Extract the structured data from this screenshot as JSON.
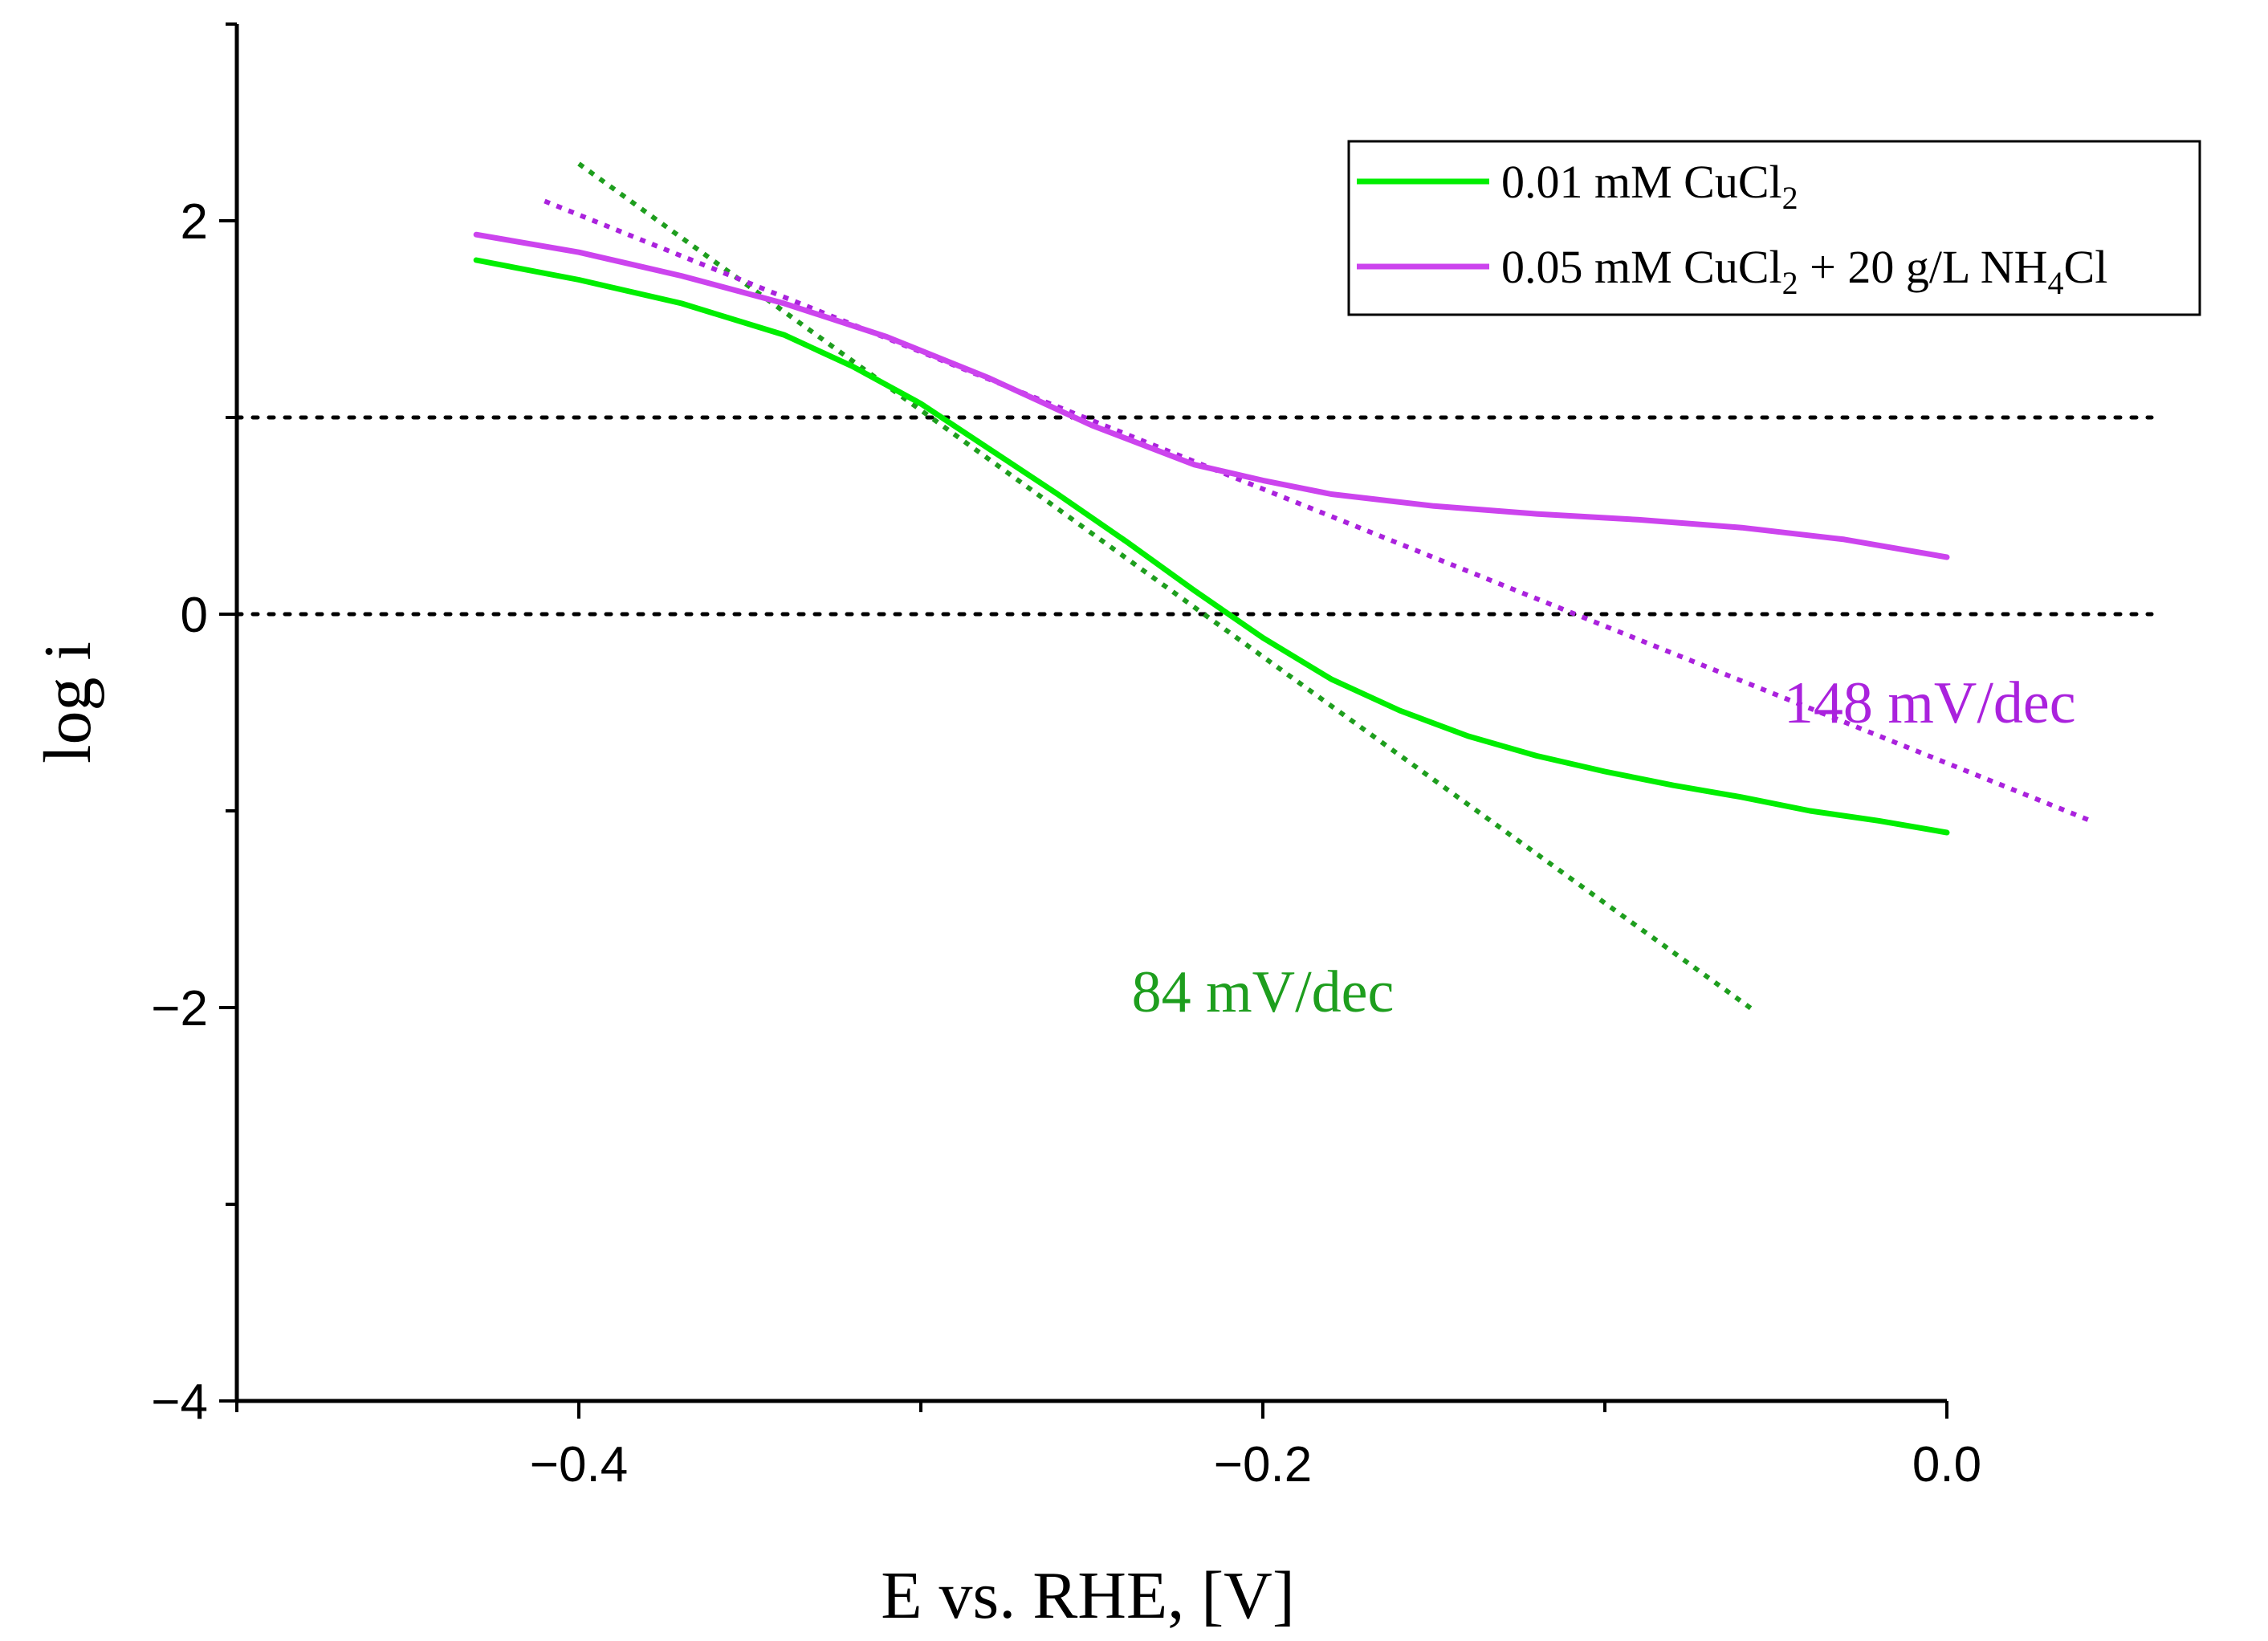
{
  "chart_data": {
    "type": "line",
    "title": "",
    "xlabel": "E vs. RHE, [V]",
    "ylabel": "log i",
    "xlim": [
      -0.5,
      0.0
    ],
    "ylim": [
      -4,
      3
    ],
    "xticks": [
      -0.4,
      -0.2,
      0.0
    ],
    "xtick_labels": [
      "−0.4",
      "−0.2",
      "0.0"
    ],
    "yticks": [
      -4,
      -2,
      0,
      2
    ],
    "ytick_labels": [
      "−4",
      "−2",
      "0",
      "2"
    ],
    "legend_position": "top-right",
    "series": [
      {
        "name": "0.01 mM CuCl2",
        "legend_main": "0.01 mM CuCl",
        "legend_sub": "2",
        "legend_tail": "",
        "color": "#00ee00",
        "x": [
          -0.43,
          -0.4,
          -0.37,
          -0.34,
          -0.32,
          -0.3,
          -0.28,
          -0.26,
          -0.24,
          -0.22,
          -0.2,
          -0.18,
          -0.16,
          -0.14,
          -0.12,
          -0.1,
          -0.08,
          -0.06,
          -0.04,
          -0.02,
          0.0
        ],
        "y": [
          1.8,
          1.7,
          1.58,
          1.42,
          1.26,
          1.07,
          0.84,
          0.61,
          0.37,
          0.12,
          -0.12,
          -0.33,
          -0.49,
          -0.62,
          -0.72,
          -0.8,
          -0.87,
          -0.93,
          -1.0,
          -1.05,
          -1.11
        ]
      },
      {
        "name": "0.05 mM CuCl2 + 20 g/L NH4Cl",
        "legend_main": "0.05 mM CuCl",
        "legend_sub": "2",
        "legend_tail": " + 20 g/L NH",
        "legend_sub2": "4",
        "legend_tail2": "Cl",
        "color": "#cc44ee",
        "x": [
          -0.43,
          -0.4,
          -0.37,
          -0.34,
          -0.31,
          -0.28,
          -0.25,
          -0.22,
          -0.2,
          -0.18,
          -0.15,
          -0.12,
          -0.09,
          -0.06,
          -0.03,
          0.0
        ],
        "y": [
          1.93,
          1.84,
          1.72,
          1.58,
          1.41,
          1.2,
          0.96,
          0.76,
          0.68,
          0.61,
          0.55,
          0.51,
          0.48,
          0.44,
          0.38,
          0.29
        ]
      }
    ],
    "fit_lines": [
      {
        "name": "84 mV/dec fit",
        "color": "#1e9e1e",
        "x": [
          -0.4,
          -0.056
        ],
        "y": [
          2.29,
          -2.02
        ]
      },
      {
        "name": "148 mV/dec fit",
        "color": "#aa22dd",
        "x": [
          -0.41,
          0.042
        ],
        "y": [
          2.1,
          -1.05
        ]
      }
    ],
    "reference_lines": [
      {
        "y": 1,
        "color": "#000000"
      },
      {
        "y": 0,
        "color": "#000000"
      }
    ],
    "annotations": [
      {
        "text": "84 mV/dec",
        "color": "#1e9e1e",
        "x": -0.2,
        "y": -2.02
      },
      {
        "text": "148 mV/dec",
        "color": "#aa22dd",
        "x": -0.005,
        "y": -0.55
      }
    ]
  }
}
